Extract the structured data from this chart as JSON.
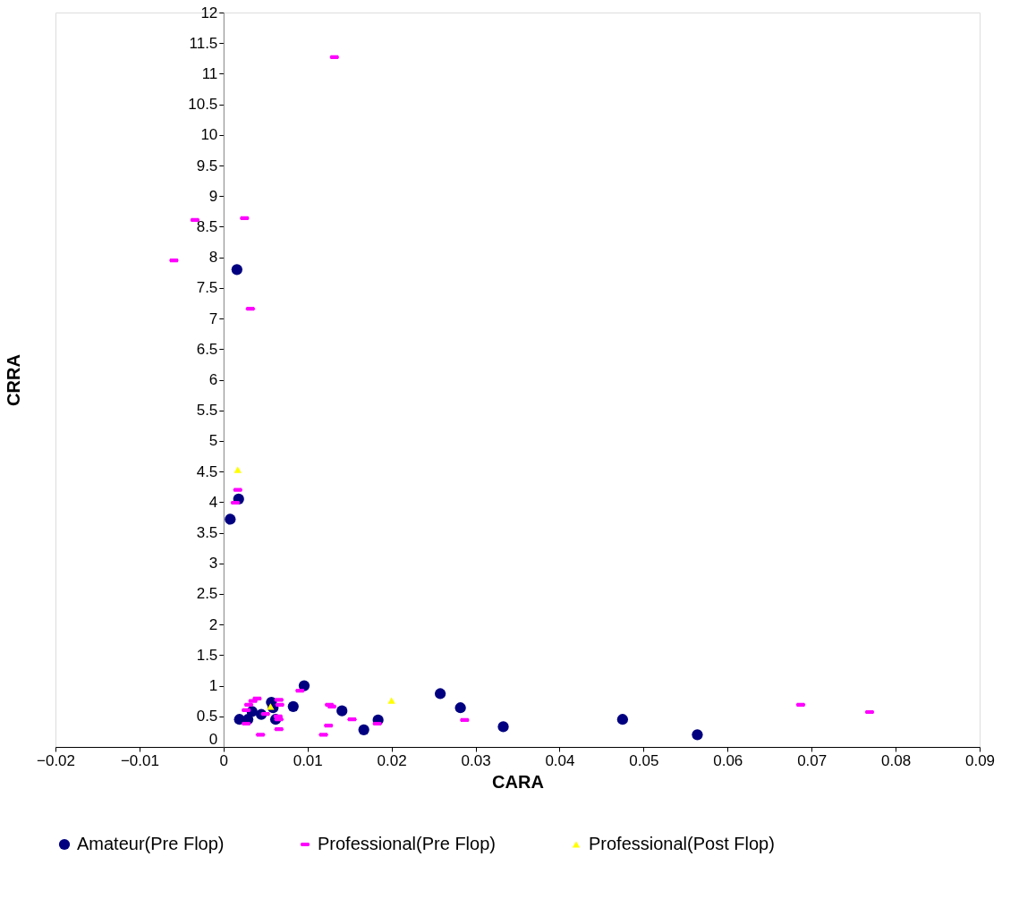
{
  "chart_data": {
    "type": "scatter",
    "xlabel": "CARA",
    "ylabel": "CRRA",
    "xlim": [
      -0.02,
      0.09
    ],
    "xticks": [
      -0.02,
      -0.01,
      0,
      0.01,
      0.02,
      0.03,
      0.04,
      0.05,
      0.06,
      0.07,
      0.08,
      0.09
    ],
    "ylim": [
      0,
      12
    ],
    "yticks": [
      0,
      0.5,
      1,
      1.5,
      2,
      2.5,
      3,
      3.5,
      4,
      4.5,
      5,
      5.5,
      6,
      6.5,
      7,
      7.5,
      8,
      8.5,
      9,
      9.5,
      10,
      10.5,
      11,
      11.5,
      12
    ],
    "grid": false,
    "legend": "bottom",
    "series": [
      {
        "name": "Amateur(Pre Flop)",
        "color": "#000080",
        "marker": "circle",
        "x": [
          0.0016,
          0.0018,
          0.0008,
          0.0019,
          0.0029,
          0.0045,
          0.0057,
          0.0062,
          0.0059,
          0.0034,
          0.0083,
          0.0096,
          0.0141,
          0.0167,
          0.0184,
          0.0258,
          0.0282,
          0.0333,
          0.0475,
          0.0564
        ],
        "values": [
          7.8,
          4.05,
          3.72,
          0.45,
          0.45,
          0.53,
          0.73,
          0.45,
          0.64,
          0.58,
          0.66,
          1.0,
          0.59,
          0.28,
          0.44,
          0.87,
          0.64,
          0.33,
          0.45,
          0.2
        ]
      },
      {
        "name": "Professional(Pre Flop)",
        "color": "#ff00ff",
        "x": [
          0.0132,
          -0.0034,
          0.0025,
          -0.0059,
          0.0032,
          0.0017,
          0.0014,
          0.0091,
          0.004,
          0.0035,
          0.003,
          0.0027,
          0.0027,
          0.0066,
          0.0067,
          0.005,
          0.0065,
          0.0066,
          0.0066,
          0.0044,
          0.0126,
          0.0129,
          0.0125,
          0.0119,
          0.0153,
          0.0183,
          0.0287,
          0.0687,
          0.0769
        ],
        "values": [
          11.27,
          8.61,
          8.64,
          7.95,
          7.16,
          4.2,
          3.99,
          0.92,
          0.79,
          0.75,
          0.69,
          0.6,
          0.38,
          0.77,
          0.69,
          0.54,
          0.5,
          0.45,
          0.29,
          0.2,
          0.69,
          0.66,
          0.35,
          0.2,
          0.45,
          0.38,
          0.44,
          0.69,
          0.57
        ]
      },
      {
        "name": "Professional(Post Flop)",
        "color": "#ffff00",
        "marker": "triangle",
        "x": [
          0.0017,
          0.0056,
          0.02
        ],
        "values": [
          4.53,
          0.66,
          0.76
        ]
      }
    ]
  }
}
